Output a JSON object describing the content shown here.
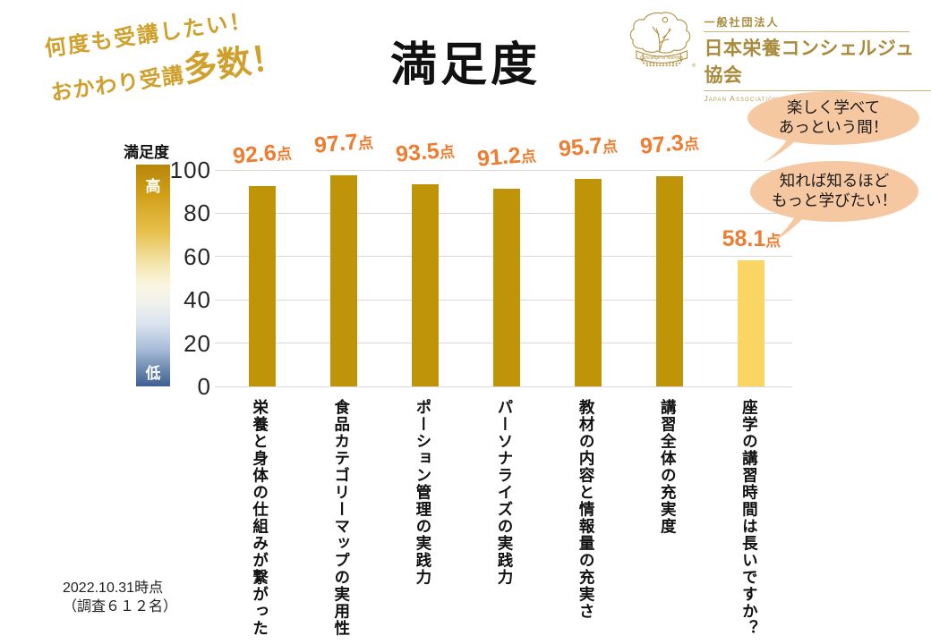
{
  "header": {
    "title": "満足度",
    "hand_note_line1": "何度も受講したい！",
    "hand_note_line2_prefix": "おかわり受講",
    "hand_note_line2_big": "多数！"
  },
  "logo": {
    "org_type": "一般社団法人",
    "org_name": "日本栄養コンシェルジュ協会",
    "org_name_en": "Japan Association of Concierge of Nutrition",
    "badge_text": "Concierge of Nutrition",
    "registered_mark": "®"
  },
  "speech_bubbles": [
    {
      "line1": "楽しく学べて",
      "line2": "あっという間！"
    },
    {
      "line1": "知れば知るほど",
      "line2": "もっと学びたい！"
    }
  ],
  "legend": {
    "title": "満足度",
    "high": "高",
    "low": "低"
  },
  "chart_data": {
    "type": "bar",
    "title": "満足度",
    "categories": [
      "栄養と身体の仕組みが繋がった",
      "食品カテゴリーマップの実用性",
      "ポーション管理の実践力",
      "パーソナライズの実践力",
      "教材の内容と情報量の充実さ",
      "講習全体の充実度",
      "座学の講習時間は長いですか？"
    ],
    "values": [
      92.6,
      97.7,
      93.5,
      91.2,
      95.7,
      97.3,
      58.1
    ],
    "unit": "点",
    "ylim": [
      0,
      100
    ],
    "yticks": [
      0,
      20,
      40,
      60,
      80,
      100
    ],
    "grid": true,
    "legend_position": "left",
    "bar_colors": [
      "#C09409",
      "#C09409",
      "#C09409",
      "#C09409",
      "#C09409",
      "#C09409",
      "#FBD564"
    ],
    "value_label_color": "#ED7D31"
  },
  "footer": {
    "date_note": "2022.10.31時点",
    "sample_note": "（調査６１２名）"
  },
  "colors": {
    "accent_gold_text": "#CFA02B",
    "logo_gold": "#A98B3C",
    "bar_gold": "#C09409",
    "bar_light_yellow": "#FBD564",
    "value_orange": "#ED7D31",
    "bubble_fill": "#F6C8A2",
    "gradient_top": "#B8860B",
    "gradient_bottom": "#3E5F93",
    "gridline": "#D8D8D8"
  }
}
